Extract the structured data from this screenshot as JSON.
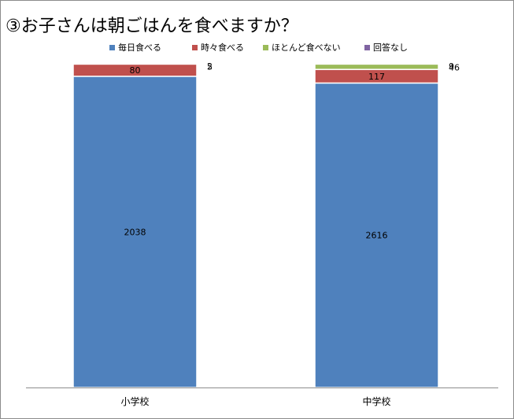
{
  "chart_data": {
    "type": "bar",
    "stacked": true,
    "title": "③お子さんは朝ごはんを食べますか？",
    "categories": [
      "小学校",
      "中学校"
    ],
    "series": [
      {
        "name": "毎日食べる",
        "color": "#4f81bd",
        "values": [
          2038,
          2616
        ]
      },
      {
        "name": "時々食べる",
        "color": "#c0504d",
        "values": [
          80,
          117
        ]
      },
      {
        "name": "ほとんど食べない",
        "color": "#9bbb59",
        "values": [
          5,
          46
        ]
      },
      {
        "name": "回答なし",
        "color": "#8064a2",
        "values": [
          2,
          9
        ]
      }
    ],
    "normalized": true,
    "legend_position": "top",
    "grid": false
  }
}
